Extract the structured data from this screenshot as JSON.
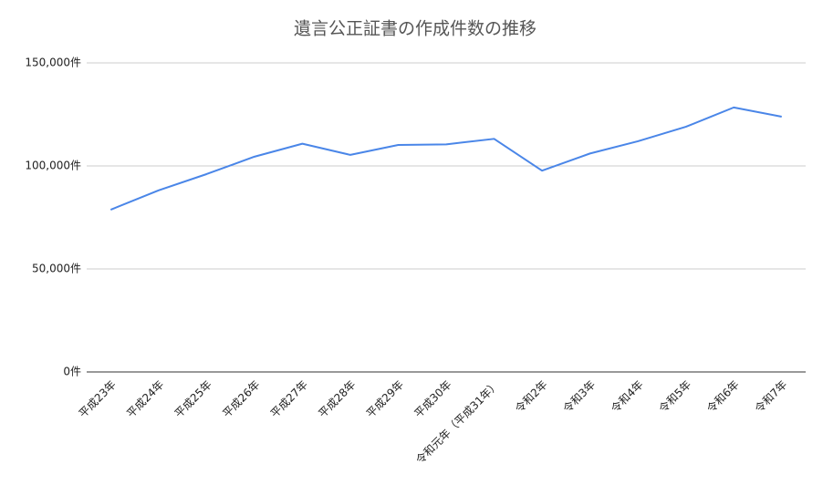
{
  "chart_data": {
    "type": "line",
    "title": "遺言公正証書の作成件数の推移",
    "categories": [
      "平成23年",
      "平成24年",
      "平成25年",
      "平成26年",
      "平成27年",
      "平成28年",
      "平成29年",
      "平成30年",
      "令和元年（平成31年）",
      "令和2年",
      "令和3年",
      "令和4年",
      "令和5年",
      "令和6年",
      "令和7年"
    ],
    "series": [
      {
        "name": "遺言公正証書",
        "color": "#4a86e8",
        "values": [
          78754,
          88156,
          96020,
          104490,
          110778,
          105350,
          110191,
          110471,
          113137,
          97700,
          106028,
          111977,
          118981,
          128378,
          123900
        ]
      }
    ],
    "ylim": [
      0,
      150000
    ],
    "yticks": [
      {
        "value": 0,
        "label": "0件"
      },
      {
        "value": 50000,
        "label": "50,000件"
      },
      {
        "value": 100000,
        "label": "100,000件"
      },
      {
        "value": 150000,
        "label": "150,000件"
      }
    ],
    "grid": true
  }
}
